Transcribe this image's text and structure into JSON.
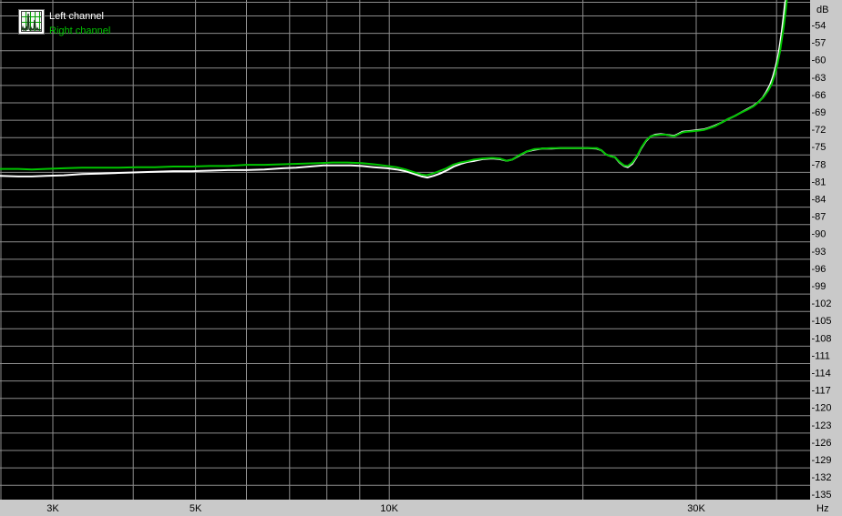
{
  "legend": {
    "items": [
      {
        "label": "Left channel",
        "color": "#ffffff"
      },
      {
        "label": "Right channel",
        "color": "#00c400"
      }
    ]
  },
  "colors": {
    "plot_bg": "#000000",
    "grid": "#8c8c8c",
    "axis_bg": "#c9c9c9",
    "axis_text": "#000000",
    "left_channel": "#ffffff",
    "right_channel": "#00c400"
  },
  "chart_data": {
    "type": "line",
    "title": "",
    "x_axis": {
      "unit": "Hz",
      "scale": "log",
      "range_hz": [
        2480,
        45000
      ],
      "gridlines_hz": [
        3000,
        4000,
        5000,
        6000,
        7000,
        8000,
        9000,
        10000,
        20000,
        30000,
        40000
      ],
      "tick_labels": [
        {
          "label": "3K",
          "hz": 3000
        },
        {
          "label": "5K",
          "hz": 5000
        },
        {
          "label": "10K",
          "hz": 10000
        },
        {
          "label": "30K",
          "hz": 30000
        }
      ]
    },
    "y_axis": {
      "unit": "dB",
      "range_db": [
        -135,
        -54
      ],
      "tick_step_db": 3,
      "tick_labels": [
        "-54",
        "-57",
        "-60",
        "-63",
        "-66",
        "-69",
        "-72",
        "-75",
        "-78",
        "-81",
        "-84",
        "-87",
        "-90",
        "-93",
        "-96",
        "-99",
        "-102",
        "-105",
        "-108",
        "-111",
        "-114",
        "-117",
        "-120",
        "-123",
        "-126",
        "-129",
        "-132",
        "-135"
      ]
    },
    "legend_position": "top-left",
    "grid": true,
    "series": [
      {
        "name": "Left channel",
        "color": "#ffffff",
        "points": [
          [
            2483,
            -81.6
          ],
          [
            2650,
            -81.7
          ],
          [
            2783,
            -81.7
          ],
          [
            2923,
            -81.6
          ],
          [
            3120,
            -81.5
          ],
          [
            3330,
            -81.3
          ],
          [
            3555,
            -81.2
          ],
          [
            3794,
            -81.1
          ],
          [
            4050,
            -81.0
          ],
          [
            4324,
            -80.9
          ],
          [
            4615,
            -80.8
          ],
          [
            4927,
            -80.8
          ],
          [
            5260,
            -80.7
          ],
          [
            5614,
            -80.6
          ],
          [
            5993,
            -80.6
          ],
          [
            6398,
            -80.5
          ],
          [
            6830,
            -80.3
          ],
          [
            7170,
            -80.2
          ],
          [
            7528,
            -80.0
          ],
          [
            7903,
            -79.8
          ],
          [
            8299,
            -79.8
          ],
          [
            8713,
            -79.8
          ],
          [
            9065,
            -79.9
          ],
          [
            9456,
            -80.1
          ],
          [
            9932,
            -80.3
          ],
          [
            10261,
            -80.5
          ],
          [
            10600,
            -80.8
          ],
          [
            10951,
            -81.3
          ],
          [
            11240,
            -81.7
          ],
          [
            11461,
            -81.9
          ],
          [
            11727,
            -81.6
          ],
          [
            11999,
            -81.2
          ],
          [
            12315,
            -80.6
          ],
          [
            12601,
            -80.0
          ],
          [
            12935,
            -79.5
          ],
          [
            13234,
            -79.2
          ],
          [
            13579,
            -79.0
          ],
          [
            13989,
            -78.7
          ],
          [
            14453,
            -78.6
          ],
          [
            14834,
            -78.7
          ],
          [
            15226,
            -79.0
          ],
          [
            15526,
            -78.8
          ],
          [
            15935,
            -78.1
          ],
          [
            16356,
            -77.4
          ],
          [
            16787,
            -77.1
          ],
          [
            17286,
            -76.9
          ],
          [
            17859,
            -76.9
          ],
          [
            18451,
            -76.8
          ],
          [
            19062,
            -76.8
          ],
          [
            19694,
            -76.8
          ],
          [
            20347,
            -76.8
          ],
          [
            21021,
            -76.9
          ],
          [
            21367,
            -77.2
          ],
          [
            21718,
            -77.9
          ],
          [
            22076,
            -78.2
          ],
          [
            22438,
            -78.4
          ],
          [
            22807,
            -79.3
          ],
          [
            23182,
            -79.9
          ],
          [
            23486,
            -80.1
          ],
          [
            23872,
            -79.5
          ],
          [
            24264,
            -78.3
          ],
          [
            24663,
            -76.8
          ],
          [
            25069,
            -75.6
          ],
          [
            25481,
            -74.8
          ],
          [
            25900,
            -74.5
          ],
          [
            26410,
            -74.4
          ],
          [
            26930,
            -74.5
          ],
          [
            27373,
            -74.6
          ],
          [
            27732,
            -74.7
          ],
          [
            28095,
            -74.4
          ],
          [
            28558,
            -74.0
          ],
          [
            29026,
            -73.9
          ],
          [
            29611,
            -73.8
          ],
          [
            30196,
            -73.7
          ],
          [
            30792,
            -73.6
          ],
          [
            31401,
            -73.3
          ],
          [
            32127,
            -72.9
          ],
          [
            32866,
            -72.4
          ],
          [
            33627,
            -71.8
          ],
          [
            34403,
            -71.3
          ],
          [
            35199,
            -70.7
          ],
          [
            36013,
            -70.1
          ],
          [
            36727,
            -69.6
          ],
          [
            37447,
            -68.9
          ],
          [
            38066,
            -68.1
          ],
          [
            38565,
            -67.1
          ],
          [
            39071,
            -65.9
          ],
          [
            39455,
            -64.6
          ],
          [
            39844,
            -62.9
          ],
          [
            40237,
            -60.8
          ],
          [
            40499,
            -58.8
          ],
          [
            40764,
            -56.6
          ],
          [
            41031,
            -54.0
          ],
          [
            41233,
            -51.8
          ],
          [
            41367,
            -51.2
          ]
        ]
      },
      {
        "name": "Right channel",
        "color": "#00c400",
        "points": [
          [
            2483,
            -80.4
          ],
          [
            2650,
            -80.4
          ],
          [
            2783,
            -80.5
          ],
          [
            2923,
            -80.4
          ],
          [
            3120,
            -80.3
          ],
          [
            3330,
            -80.2
          ],
          [
            3555,
            -80.2
          ],
          [
            3794,
            -80.2
          ],
          [
            4050,
            -80.1
          ],
          [
            4324,
            -80.1
          ],
          [
            4615,
            -80.0
          ],
          [
            4927,
            -80.0
          ],
          [
            5260,
            -79.9
          ],
          [
            5614,
            -79.9
          ],
          [
            5993,
            -79.7
          ],
          [
            6398,
            -79.7
          ],
          [
            6830,
            -79.6
          ],
          [
            7291,
            -79.5
          ],
          [
            7783,
            -79.4
          ],
          [
            8165,
            -79.3
          ],
          [
            8573,
            -79.3
          ],
          [
            9065,
            -79.4
          ],
          [
            9456,
            -79.6
          ],
          [
            9932,
            -79.9
          ],
          [
            10261,
            -80.1
          ],
          [
            10600,
            -80.5
          ],
          [
            10951,
            -81.0
          ],
          [
            11240,
            -81.4
          ],
          [
            11426,
            -81.5
          ],
          [
            11690,
            -81.2
          ],
          [
            11960,
            -80.8
          ],
          [
            12276,
            -80.3
          ],
          [
            12560,
            -79.7
          ],
          [
            12893,
            -79.3
          ],
          [
            13190,
            -79.1
          ],
          [
            13539,
            -78.8
          ],
          [
            13989,
            -78.6
          ],
          [
            14453,
            -78.5
          ],
          [
            14834,
            -78.6
          ],
          [
            15226,
            -79.0
          ],
          [
            15526,
            -78.8
          ],
          [
            15935,
            -78.0
          ],
          [
            16356,
            -77.4
          ],
          [
            16787,
            -77.0
          ],
          [
            17286,
            -76.9
          ],
          [
            17859,
            -76.8
          ],
          [
            18451,
            -76.8
          ],
          [
            19062,
            -76.8
          ],
          [
            19694,
            -76.8
          ],
          [
            20347,
            -76.8
          ],
          [
            21021,
            -76.8
          ],
          [
            21367,
            -77.2
          ],
          [
            21718,
            -77.9
          ],
          [
            22076,
            -78.2
          ],
          [
            22438,
            -78.4
          ],
          [
            22807,
            -79.2
          ],
          [
            23182,
            -79.8
          ],
          [
            23486,
            -79.9
          ],
          [
            23872,
            -79.3
          ],
          [
            24264,
            -78.2
          ],
          [
            24663,
            -76.7
          ],
          [
            25069,
            -75.5
          ],
          [
            25481,
            -74.8
          ],
          [
            25900,
            -74.6
          ],
          [
            26410,
            -74.5
          ],
          [
            26930,
            -74.5
          ],
          [
            27373,
            -74.7
          ],
          [
            27732,
            -74.8
          ],
          [
            28095,
            -74.5
          ],
          [
            28558,
            -74.1
          ],
          [
            29026,
            -74.0
          ],
          [
            29611,
            -73.9
          ],
          [
            30196,
            -73.8
          ],
          [
            30792,
            -73.7
          ],
          [
            31401,
            -73.4
          ],
          [
            32127,
            -73.0
          ],
          [
            32866,
            -72.4
          ],
          [
            33627,
            -71.8
          ],
          [
            34403,
            -71.3
          ],
          [
            35199,
            -70.7
          ],
          [
            36013,
            -70.2
          ],
          [
            36846,
            -69.6
          ],
          [
            37572,
            -68.8
          ],
          [
            38190,
            -68.0
          ],
          [
            38819,
            -66.9
          ],
          [
            39328,
            -65.7
          ],
          [
            39714,
            -64.3
          ],
          [
            40105,
            -62.4
          ],
          [
            40499,
            -60.1
          ],
          [
            40764,
            -58.0
          ],
          [
            41031,
            -55.9
          ],
          [
            41299,
            -53.4
          ],
          [
            41502,
            -51.2
          ]
        ]
      }
    ]
  }
}
